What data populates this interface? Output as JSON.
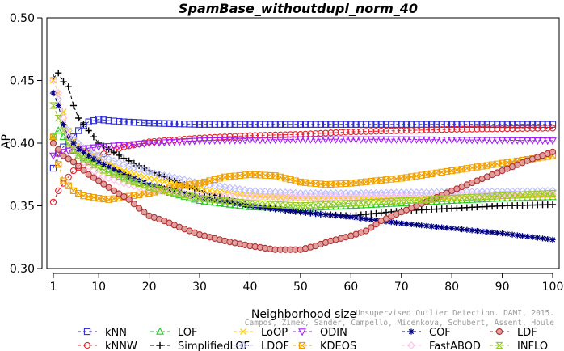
{
  "chart_data": {
    "type": "line",
    "title": "SpamBase_withoutdupl_norm_40",
    "xlabel": "Neighborhood size",
    "ylabel": "AP",
    "xlim": [
      1,
      100
    ],
    "ylim": [
      0.3,
      0.5
    ],
    "xticks": [
      1,
      10,
      20,
      30,
      40,
      50,
      60,
      70,
      80,
      90,
      100
    ],
    "yticks": [
      0.3,
      0.35,
      0.4,
      0.45,
      0.5
    ],
    "ytick_labels": [
      "0.30",
      "0.35",
      "0.40",
      "0.45",
      "0.50"
    ],
    "grid": false,
    "legend_position": "bottom",
    "watermark_lines": [
      "Unsupervised Outlier Detection. DAMI, 2015.",
      "Campos, Zimek, Sander, Campello, Micenkova, Schubert, Assent, Houle"
    ],
    "series": [
      {
        "name": "kNN",
        "color": "#2a2ad8",
        "marker": "square",
        "points": [
          [
            1,
            0.38
          ],
          [
            2,
            0.392
          ],
          [
            3,
            0.397
          ],
          [
            4,
            0.4
          ],
          [
            5,
            0.405
          ],
          [
            6,
            0.41
          ],
          [
            7,
            0.414
          ],
          [
            8,
            0.417
          ],
          [
            9,
            0.418
          ],
          [
            10,
            0.419
          ],
          [
            12,
            0.418
          ],
          [
            15,
            0.417
          ],
          [
            20,
            0.416
          ],
          [
            30,
            0.415
          ],
          [
            50,
            0.415
          ],
          [
            70,
            0.415
          ],
          [
            100,
            0.415
          ]
        ]
      },
      {
        "name": "kNNW",
        "color": "#e8202a",
        "marker": "circle",
        "points": [
          [
            1,
            0.353
          ],
          [
            2,
            0.362
          ],
          [
            3,
            0.368
          ],
          [
            4,
            0.373
          ],
          [
            5,
            0.378
          ],
          [
            7,
            0.383
          ],
          [
            10,
            0.39
          ],
          [
            15,
            0.397
          ],
          [
            20,
            0.401
          ],
          [
            30,
            0.404
          ],
          [
            40,
            0.406
          ],
          [
            50,
            0.407
          ],
          [
            60,
            0.409
          ],
          [
            70,
            0.41
          ],
          [
            80,
            0.411
          ],
          [
            100,
            0.412
          ]
        ]
      },
      {
        "name": "LOF",
        "color": "#22cc22",
        "marker": "triangle-up",
        "points": [
          [
            1,
            0.405
          ],
          [
            2,
            0.41
          ],
          [
            3,
            0.405
          ],
          [
            4,
            0.398
          ],
          [
            6,
            0.39
          ],
          [
            10,
            0.383
          ],
          [
            15,
            0.373
          ],
          [
            20,
            0.365
          ],
          [
            30,
            0.354
          ],
          [
            40,
            0.349
          ],
          [
            50,
            0.348
          ],
          [
            60,
            0.35
          ],
          [
            70,
            0.352
          ],
          [
            80,
            0.354
          ],
          [
            90,
            0.356
          ],
          [
            100,
            0.357
          ]
        ]
      },
      {
        "name": "SimplifiedLOF",
        "color": "#000000",
        "marker": "plus",
        "points": [
          [
            1,
            0.452
          ],
          [
            2,
            0.456
          ],
          [
            3,
            0.449
          ],
          [
            4,
            0.445
          ],
          [
            5,
            0.43
          ],
          [
            6,
            0.42
          ],
          [
            8,
            0.41
          ],
          [
            10,
            0.4
          ],
          [
            15,
            0.388
          ],
          [
            20,
            0.378
          ],
          [
            30,
            0.362
          ],
          [
            40,
            0.35
          ],
          [
            50,
            0.345
          ],
          [
            55,
            0.343
          ],
          [
            60,
            0.342
          ],
          [
            65,
            0.344
          ],
          [
            70,
            0.346
          ],
          [
            80,
            0.348
          ],
          [
            90,
            0.35
          ],
          [
            100,
            0.351
          ]
        ]
      },
      {
        "name": "LoOP",
        "color": "#ffcc00",
        "marker": "x",
        "points": [
          [
            1,
            0.45
          ],
          [
            2,
            0.44
          ],
          [
            3,
            0.425
          ],
          [
            4,
            0.41
          ],
          [
            5,
            0.402
          ],
          [
            7,
            0.395
          ],
          [
            10,
            0.388
          ],
          [
            15,
            0.378
          ],
          [
            20,
            0.372
          ],
          [
            30,
            0.363
          ],
          [
            40,
            0.358
          ],
          [
            50,
            0.356
          ],
          [
            70,
            0.356
          ],
          [
            100,
            0.358
          ]
        ]
      },
      {
        "name": "LDOF",
        "color": "#bcbcff",
        "marker": "diamond",
        "points": [
          [
            1,
            0.44
          ],
          [
            2,
            0.435
          ],
          [
            3,
            0.42
          ],
          [
            4,
            0.41
          ],
          [
            5,
            0.403
          ],
          [
            7,
            0.396
          ],
          [
            10,
            0.39
          ],
          [
            15,
            0.383
          ],
          [
            20,
            0.377
          ],
          [
            30,
            0.368
          ],
          [
            40,
            0.362
          ],
          [
            50,
            0.36
          ],
          [
            60,
            0.36
          ],
          [
            80,
            0.361
          ],
          [
            100,
            0.362
          ]
        ]
      },
      {
        "name": "ODIN",
        "color": "#a020f0",
        "marker": "triangle-down",
        "points": [
          [
            1,
            0.39
          ],
          [
            2,
            0.392
          ],
          [
            3,
            0.393
          ],
          [
            4,
            0.394
          ],
          [
            6,
            0.395
          ],
          [
            10,
            0.397
          ],
          [
            20,
            0.4
          ],
          [
            30,
            0.402
          ],
          [
            50,
            0.403
          ],
          [
            70,
            0.403
          ],
          [
            100,
            0.402
          ]
        ]
      },
      {
        "name": "KDEOS",
        "color": "#f0a000",
        "marker": "square-x",
        "points": [
          [
            1,
            0.405
          ],
          [
            2,
            0.383
          ],
          [
            3,
            0.37
          ],
          [
            4,
            0.366
          ],
          [
            5,
            0.362
          ],
          [
            7,
            0.358
          ],
          [
            10,
            0.356
          ],
          [
            12,
            0.355
          ],
          [
            15,
            0.357
          ],
          [
            20,
            0.36
          ],
          [
            25,
            0.365
          ],
          [
            30,
            0.368
          ],
          [
            35,
            0.373
          ],
          [
            40,
            0.375
          ],
          [
            45,
            0.374
          ],
          [
            50,
            0.369
          ],
          [
            55,
            0.367
          ],
          [
            60,
            0.368
          ],
          [
            65,
            0.37
          ],
          [
            70,
            0.372
          ],
          [
            75,
            0.375
          ],
          [
            80,
            0.378
          ],
          [
            85,
            0.381
          ],
          [
            90,
            0.384
          ],
          [
            95,
            0.387
          ],
          [
            100,
            0.39
          ]
        ]
      },
      {
        "name": "COF",
        "color": "#000080",
        "marker": "asterisk",
        "points": [
          [
            1,
            0.44
          ],
          [
            2,
            0.43
          ],
          [
            3,
            0.415
          ],
          [
            4,
            0.405
          ],
          [
            6,
            0.395
          ],
          [
            10,
            0.385
          ],
          [
            15,
            0.375
          ],
          [
            20,
            0.367
          ],
          [
            30,
            0.357
          ],
          [
            40,
            0.35
          ],
          [
            50,
            0.345
          ],
          [
            60,
            0.341
          ],
          [
            70,
            0.336
          ],
          [
            80,
            0.332
          ],
          [
            90,
            0.328
          ],
          [
            100,
            0.323
          ]
        ]
      },
      {
        "name": "FastABOD",
        "color": "#ffc0e8",
        "marker": "diamond",
        "points": [
          [
            1,
            0.45
          ],
          [
            2,
            0.44
          ],
          [
            3,
            0.42
          ],
          [
            4,
            0.405
          ],
          [
            5,
            0.395
          ],
          [
            7,
            0.385
          ],
          [
            10,
            0.375
          ],
          [
            15,
            0.368
          ],
          [
            20,
            0.363
          ],
          [
            30,
            0.358
          ],
          [
            40,
            0.357
          ],
          [
            60,
            0.357
          ],
          [
            80,
            0.358
          ],
          [
            100,
            0.359
          ]
        ]
      },
      {
        "name": "LDF",
        "color": "#b03030",
        "marker": "circle-dot",
        "points": [
          [
            1,
            0.4
          ],
          [
            3,
            0.39
          ],
          [
            5,
            0.385
          ],
          [
            8,
            0.375
          ],
          [
            10,
            0.37
          ],
          [
            13,
            0.362
          ],
          [
            16,
            0.355
          ],
          [
            18,
            0.348
          ],
          [
            20,
            0.342
          ],
          [
            23,
            0.338
          ],
          [
            26,
            0.333
          ],
          [
            30,
            0.327
          ],
          [
            35,
            0.322
          ],
          [
            40,
            0.318
          ],
          [
            45,
            0.315
          ],
          [
            50,
            0.315
          ],
          [
            53,
            0.318
          ],
          [
            56,
            0.322
          ],
          [
            60,
            0.326
          ],
          [
            63,
            0.33
          ],
          [
            66,
            0.338
          ],
          [
            70,
            0.345
          ],
          [
            73,
            0.35
          ],
          [
            76,
            0.355
          ],
          [
            80,
            0.362
          ],
          [
            85,
            0.37
          ],
          [
            90,
            0.378
          ],
          [
            95,
            0.386
          ],
          [
            100,
            0.393
          ]
        ]
      },
      {
        "name": "INFLO",
        "color": "#99cc22",
        "marker": "hourglass",
        "points": [
          [
            1,
            0.43
          ],
          [
            2,
            0.42
          ],
          [
            3,
            0.41
          ],
          [
            4,
            0.4
          ],
          [
            6,
            0.39
          ],
          [
            10,
            0.38
          ],
          [
            15,
            0.372
          ],
          [
            20,
            0.365
          ],
          [
            30,
            0.356
          ],
          [
            40,
            0.352
          ],
          [
            50,
            0.35
          ],
          [
            60,
            0.352
          ],
          [
            70,
            0.354
          ],
          [
            80,
            0.356
          ],
          [
            90,
            0.358
          ],
          [
            100,
            0.36
          ]
        ]
      }
    ]
  }
}
